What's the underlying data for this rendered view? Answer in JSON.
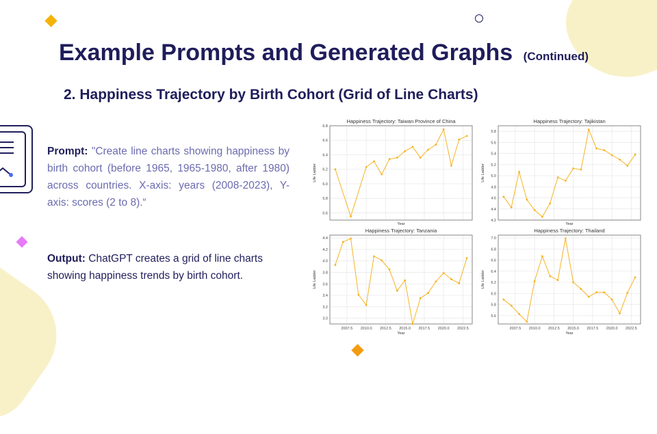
{
  "slide": {
    "title": "Example Prompts and Generated Graphs",
    "title_suffix": "(Continued)",
    "subtitle": "2. Happiness Trajectory by Birth Cohort (Grid of Line Charts)",
    "prompt_label": "Prompt:",
    "prompt_text": "\"Create line charts showing happiness by birth cohort (before 1965, 1965-1980, after 1980) across countries. X-axis: years (2008-2023), Y-axis: scores (2 to 8).“",
    "output_label": "Output:",
    "output_text": "ChatGPT creates a grid of line charts showing happiness trends by birth cohort.",
    "colors": {
      "title": "#1f1d5a",
      "prompt_text": "#6b6bb0",
      "deco_yellow": "#f5b30a",
      "deco_orange": "#f39c12",
      "deco_pink": "#e879f9",
      "line": "#f5b324"
    }
  },
  "chart_data": [
    {
      "type": "line",
      "title": "Happiness Trajectory: Taiwan Province of China",
      "xlabel": "Year",
      "ylabel": "Life Ladder",
      "x": [
        2006,
        2008,
        2010,
        2011,
        2012,
        2013,
        2014,
        2015,
        2016,
        2017,
        2018,
        2019,
        2020,
        2021,
        2022,
        2023
      ],
      "y": [
        6.2,
        5.55,
        6.23,
        6.31,
        6.13,
        6.34,
        6.36,
        6.45,
        6.51,
        6.36,
        6.47,
        6.54,
        6.75,
        6.25,
        6.61,
        6.66
      ],
      "xlim": [
        2005.3,
        2023.7
      ],
      "ylim": [
        5.5,
        6.8
      ],
      "yticks": [
        5.6,
        5.8,
        6.0,
        6.2,
        6.4,
        6.6,
        6.8
      ],
      "xticks": [],
      "show_xticks": false,
      "grid": true
    },
    {
      "type": "line",
      "title": "Happiness Trajectory: Tajikistan",
      "xlabel": "Year",
      "ylabel": "Life Ladder",
      "x": [
        2006,
        2007,
        2008,
        2009,
        2010,
        2011,
        2012,
        2013,
        2014,
        2015,
        2016,
        2017,
        2018,
        2019,
        2020,
        2021,
        2022,
        2023
      ],
      "y": [
        4.62,
        4.43,
        5.07,
        4.57,
        4.38,
        4.26,
        4.5,
        4.97,
        4.91,
        5.13,
        5.11,
        5.83,
        5.49,
        5.46,
        5.37,
        5.29,
        5.18,
        5.38
      ],
      "xlim": [
        2005.3,
        2023.7
      ],
      "ylim": [
        4.2,
        5.9
      ],
      "yticks": [
        4.2,
        4.4,
        4.6,
        4.8,
        5.0,
        5.2,
        5.4,
        5.6,
        5.8
      ],
      "xticks": [],
      "show_xticks": false,
      "grid": true
    },
    {
      "type": "line",
      "title": "Happiness Trajectory: Tanzania",
      "xlabel": "Year",
      "ylabel": "Life Ladder",
      "x": [
        2006,
        2007,
        2008,
        2009,
        2010,
        2011,
        2012,
        2013,
        2014,
        2015,
        2016,
        2017,
        2018,
        2019,
        2020,
        2021,
        2022,
        2023
      ],
      "y": [
        3.93,
        4.33,
        4.39,
        3.41,
        3.23,
        4.08,
        4.01,
        3.85,
        3.48,
        3.66,
        2.9,
        3.35,
        3.44,
        3.64,
        3.79,
        3.68,
        3.61,
        4.05
      ],
      "xlim": [
        2005.3,
        2023.7
      ],
      "ylim": [
        2.9,
        4.45
      ],
      "yticks": [
        3.0,
        3.2,
        3.4,
        3.6,
        3.8,
        4.0,
        4.2,
        4.4
      ],
      "xticks": [
        "2007.5",
        "2010.0",
        "2012.5",
        "2015.0",
        "2017.5",
        "2020.0",
        "2022.5"
      ],
      "show_xticks": true,
      "grid": true
    },
    {
      "type": "line",
      "title": "Happiness Trajectory: Thailand",
      "xlabel": "Year",
      "ylabel": "Life Ladder",
      "x": [
        2006,
        2007,
        2008,
        2009,
        2010,
        2011,
        2012,
        2013,
        2014,
        2015,
        2016,
        2017,
        2018,
        2019,
        2020,
        2021,
        2022,
        2023
      ],
      "y": [
        5.89,
        5.78,
        5.63,
        5.49,
        6.22,
        6.67,
        6.31,
        6.24,
        6.99,
        6.2,
        6.08,
        5.94,
        6.02,
        6.02,
        5.89,
        5.64,
        6.01,
        6.29
      ],
      "xlim": [
        2005.3,
        2023.7
      ],
      "ylim": [
        5.45,
        7.05
      ],
      "yticks": [
        5.6,
        5.8,
        6.0,
        6.2,
        6.4,
        6.6,
        6.8,
        7.0
      ],
      "xticks": [
        "2007.5",
        "2010.0",
        "2012.5",
        "2015.0",
        "2017.5",
        "2020.0",
        "2022.5"
      ],
      "show_xticks": true,
      "grid": true
    }
  ]
}
